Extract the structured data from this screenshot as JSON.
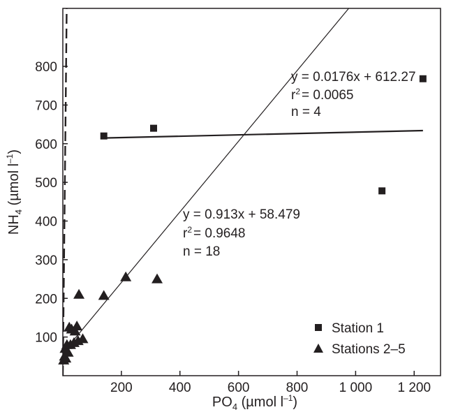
{
  "chart_data": {
    "type": "scatter",
    "xlabel": {
      "base": "PO",
      "sub": "4",
      "unit_pre": " (µmol l",
      "unit_sup": "–1",
      "unit_post": ")"
    },
    "ylabel": {
      "base": "NH",
      "sub": "4",
      "unit_pre": " (µmol l",
      "unit_sup": "–1",
      "unit_post": ")"
    },
    "xlim": [
      0,
      1290
    ],
    "ylim": [
      0,
      950
    ],
    "xticks": [
      {
        "value": 200,
        "label": "200"
      },
      {
        "value": 400,
        "label": "400"
      },
      {
        "value": 600,
        "label": "600"
      },
      {
        "value": 800,
        "label": "800"
      },
      {
        "value": 1000,
        "label": "1 000"
      },
      {
        "value": 1200,
        "label": "1 200"
      }
    ],
    "yticks": [
      {
        "value": 100,
        "label": "100"
      },
      {
        "value": 200,
        "label": "200"
      },
      {
        "value": 300,
        "label": "300"
      },
      {
        "value": 400,
        "label": "400"
      },
      {
        "value": 500,
        "label": "500"
      },
      {
        "value": 600,
        "label": "600"
      },
      {
        "value": 700,
        "label": "700"
      },
      {
        "value": 800,
        "label": "800"
      }
    ],
    "series": [
      {
        "name": "Station 1",
        "marker": "square",
        "points": [
          {
            "x": 140,
            "y": 620
          },
          {
            "x": 310,
            "y": 640
          },
          {
            "x": 1090,
            "y": 478
          },
          {
            "x": 1230,
            "y": 768
          }
        ]
      },
      {
        "name": "Stations 2–5",
        "marker": "triangle",
        "points": [
          {
            "x": 3,
            "y": 40
          },
          {
            "x": 6,
            "y": 50
          },
          {
            "x": 8,
            "y": 70
          },
          {
            "x": 10,
            "y": 45
          },
          {
            "x": 14,
            "y": 80
          },
          {
            "x": 18,
            "y": 60
          },
          {
            "x": 22,
            "y": 125
          },
          {
            "x": 26,
            "y": 80
          },
          {
            "x": 30,
            "y": 120
          },
          {
            "x": 38,
            "y": 85
          },
          {
            "x": 42,
            "y": 115
          },
          {
            "x": 48,
            "y": 128
          },
          {
            "x": 55,
            "y": 210
          },
          {
            "x": 68,
            "y": 95
          },
          {
            "x": 140,
            "y": 207
          },
          {
            "x": 215,
            "y": 255
          },
          {
            "x": 322,
            "y": 250
          },
          {
            "x": 52,
            "y": 90
          }
        ]
      }
    ],
    "fits": [
      {
        "label": "station1-fit",
        "slope": 0.0176,
        "intercept": 612.27,
        "x_range": [
          140,
          1230
        ],
        "style": "solid-thick",
        "equation": "y = 0.0176x + 612.27",
        "r2": "= 0.0065",
        "n": "n = 4"
      },
      {
        "label": "stations2-5-fit",
        "slope": 0.913,
        "intercept": 58.479,
        "x_range": [
          0,
          1290
        ],
        "style": "solid-thin",
        "equation": "y = 0.913x + 58.479",
        "r2": "= 0.9648",
        "n": "n = 18"
      },
      {
        "label": "dashed-line",
        "slope": 72.0,
        "intercept": 0,
        "x_range": [
          0,
          13.2
        ],
        "style": "dashed"
      }
    ],
    "r_symbol": "r",
    "r_sup": "2",
    "legend_position": "bottom-right",
    "grid": false
  }
}
